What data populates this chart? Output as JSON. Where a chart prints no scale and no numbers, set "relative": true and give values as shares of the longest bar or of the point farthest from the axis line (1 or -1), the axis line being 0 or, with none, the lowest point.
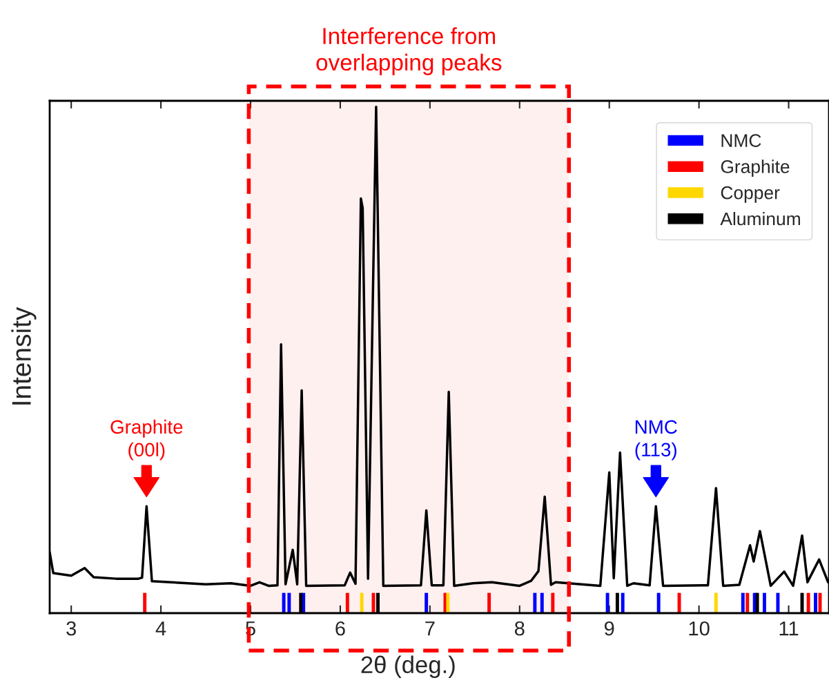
{
  "chart_data": {
    "type": "line",
    "relative": true,
    "xlabel": "2θ (deg.)",
    "ylabel": "Intensity",
    "xlim": [
      2.76,
      11.45
    ],
    "xticks": [
      3,
      4,
      5,
      6,
      7,
      8,
      9,
      10,
      11
    ],
    "tick_labels": "x",
    "legend": "top right",
    "series": [
      {
        "color": "#000000",
        "x": [
          2.76,
          2.8,
          3.0,
          3.15,
          3.25,
          3.5,
          3.75,
          3.79,
          3.84,
          3.9,
          4.2,
          4.5,
          4.78,
          5.0,
          5.1,
          5.2,
          5.3,
          5.34,
          5.39,
          5.47,
          5.52,
          5.57,
          5.62,
          6.05,
          6.11,
          6.17,
          6.23,
          6.25,
          6.31,
          6.4,
          6.48,
          6.9,
          6.96,
          7.02,
          7.15,
          7.21,
          7.27,
          7.48,
          7.69,
          8.0,
          8.13,
          8.21,
          8.28,
          8.35,
          8.4,
          8.9,
          9.0,
          9.05,
          9.12,
          9.2,
          9.27,
          9.45,
          9.52,
          9.6,
          10.1,
          10.19,
          10.27,
          10.45,
          10.57,
          10.61,
          10.68,
          10.8,
          10.95,
          11.05,
          11.15,
          11.21,
          11.27,
          11.34,
          11.44
        ],
        "values": [
          0.12,
          0.079,
          0.074,
          0.089,
          0.071,
          0.068,
          0.068,
          0.07,
          0.211,
          0.063,
          0.06,
          0.057,
          0.059,
          0.054,
          0.061,
          0.054,
          0.055,
          0.531,
          0.057,
          0.125,
          0.057,
          0.44,
          0.054,
          0.055,
          0.08,
          0.058,
          0.819,
          0.8,
          0.068,
          1.0,
          0.054,
          0.055,
          0.203,
          0.055,
          0.055,
          0.437,
          0.054,
          0.059,
          0.061,
          0.054,
          0.064,
          0.083,
          0.23,
          0.056,
          0.061,
          0.054,
          0.278,
          0.069,
          0.317,
          0.054,
          0.059,
          0.055,
          0.211,
          0.054,
          0.055,
          0.247,
          0.054,
          0.056,
          0.134,
          0.102,
          0.162,
          0.054,
          0.082,
          0.054,
          0.153,
          0.061,
          0.082,
          0.106,
          0.061
        ]
      },
      {
        "type": "bar",
        "name": "NMC",
        "color": "#0000ff",
        "x": [
          5.37,
          5.43,
          5.59,
          6.96,
          8.17,
          8.25,
          8.98,
          9.15,
          9.55,
          10.49,
          10.62,
          10.73,
          10.88,
          11.3
        ],
        "values": [
          0.04,
          0.04,
          0.04,
          0.04,
          0.04,
          0.04,
          0.04,
          0.04,
          0.04,
          0.04,
          0.04,
          0.04,
          0.04,
          0.04
        ]
      },
      {
        "type": "bar",
        "name": "Graphite",
        "color": "#ff0000",
        "x": [
          3.82,
          6.08,
          6.37,
          7.17,
          7.66,
          8.37,
          9.78,
          10.54,
          11.22,
          11.35
        ],
        "values": [
          0.04,
          0.04,
          0.04,
          0.04,
          0.04,
          0.04,
          0.04,
          0.04,
          0.04,
          0.04
        ]
      },
      {
        "type": "bar",
        "name": "Copper",
        "color": "#ffd700",
        "x": [
          6.24,
          7.2,
          10.19
        ],
        "values": [
          0.04,
          0.04,
          0.04
        ]
      },
      {
        "type": "bar",
        "name": "Aluminum",
        "color": "#000000",
        "x": [
          5.56,
          6.42,
          9.09,
          10.65,
          11.15
        ],
        "values": [
          0.04,
          0.04,
          0.04,
          0.04,
          0.04
        ]
      }
    ],
    "bands": [
      {
        "axis": "x",
        "from": 4.98,
        "to": 8.55,
        "label": "Interference from\noverlapping peaks",
        "color": "#ff0000"
      }
    ],
    "annotations": [
      {
        "text": "Graphite\n(00l)",
        "x": 3.84,
        "y": 0.211
      },
      {
        "text": "NMC\n(113)",
        "x": 9.52,
        "y": 0.211
      }
    ]
  }
}
